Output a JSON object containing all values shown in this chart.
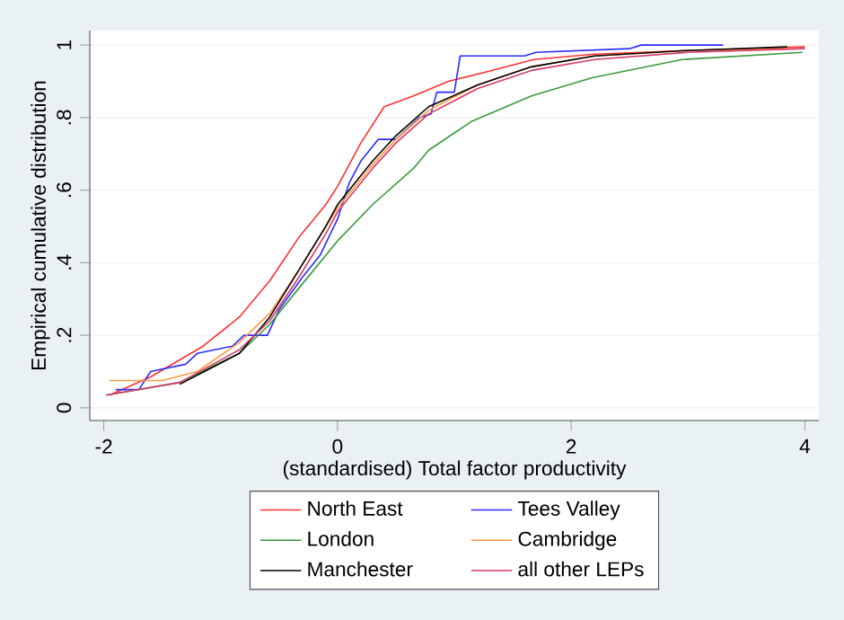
{
  "chart_data": {
    "type": "line",
    "xlabel": "(standardised) Total factor productivity",
    "ylabel": "Empirical cumulative distribution",
    "xlim": [
      -2.12,
      4.12
    ],
    "ylim": [
      -0.035,
      1.04
    ],
    "xticks": [
      -2,
      0,
      2,
      4
    ],
    "yticks": [
      0,
      {
        "value": 0.2,
        "label": ".2"
      },
      {
        "value": 0.4,
        "label": ".4"
      },
      {
        "value": 0.6,
        "label": ".6"
      },
      {
        "value": 0.8,
        "label": ".8"
      },
      1
    ],
    "grid": "y",
    "legend": "bottom",
    "marker": "none",
    "series": [
      {
        "name": "North East",
        "color": "#ff3030",
        "x": [
          -1.95,
          -1.6,
          -1.15,
          -0.84,
          -0.58,
          -0.33,
          -0.1,
          0,
          0.2,
          0.4,
          0.65,
          0.95,
          1.26,
          1.68,
          2.2,
          3.0,
          4.0
        ],
        "values": [
          0.035,
          0.085,
          0.17,
          0.25,
          0.35,
          0.47,
          0.56,
          0.61,
          0.73,
          0.83,
          0.86,
          0.9,
          0.925,
          0.96,
          0.975,
          0.985,
          0.995
        ]
      },
      {
        "name": "Tees Valley",
        "color": "#2b2bff",
        "x": [
          -1.9,
          -1.7,
          -1.6,
          -1.3,
          -1.2,
          -0.9,
          -0.8,
          -0.6,
          -0.5,
          -0.3,
          -0.15,
          0,
          0.1,
          0.2,
          0.35,
          0.5,
          0.7,
          0.8,
          0.85,
          1.0,
          1.05,
          1.6,
          1.7,
          2.5,
          2.6,
          3.3
        ],
        "values": [
          0.05,
          0.05,
          0.1,
          0.12,
          0.15,
          0.17,
          0.2,
          0.2,
          0.27,
          0.36,
          0.42,
          0.52,
          0.62,
          0.68,
          0.74,
          0.74,
          0.8,
          0.81,
          0.87,
          0.87,
          0.97,
          0.97,
          0.98,
          0.99,
          1.0,
          1.0
        ]
      },
      {
        "name": "London",
        "color": "#3a9a3a",
        "x": [
          -1.98,
          -1.35,
          -0.84,
          -0.58,
          -0.33,
          0,
          0.3,
          0.65,
          0.78,
          1.15,
          1.66,
          2.18,
          2.95,
          3.98
        ],
        "values": [
          0.035,
          0.07,
          0.15,
          0.23,
          0.33,
          0.46,
          0.56,
          0.66,
          0.71,
          0.79,
          0.86,
          0.91,
          0.96,
          0.98
        ]
      },
      {
        "name": "Cambridge",
        "color": "#ff9a40",
        "x": [
          -1.95,
          -1.5,
          -1.2,
          -0.84,
          -0.58,
          -0.33,
          -0.1,
          0,
          0.3,
          0.5,
          0.78,
          1.2,
          1.66,
          2.2,
          3.0,
          3.9
        ],
        "values": [
          0.075,
          0.075,
          0.1,
          0.18,
          0.26,
          0.38,
          0.5,
          0.55,
          0.67,
          0.74,
          0.82,
          0.89,
          0.94,
          0.97,
          0.985,
          0.99
        ]
      },
      {
        "name": "Manchester",
        "color": "#000000",
        "x": [
          -1.35,
          -0.84,
          -0.58,
          -0.33,
          -0.1,
          0,
          0.3,
          0.5,
          0.78,
          1.2,
          1.66,
          2.2,
          3.0,
          3.85
        ],
        "values": [
          0.065,
          0.15,
          0.25,
          0.38,
          0.5,
          0.56,
          0.68,
          0.75,
          0.83,
          0.89,
          0.94,
          0.97,
          0.985,
          0.995
        ]
      },
      {
        "name": "all other LEPs",
        "color": "#d63a6a",
        "x": [
          -1.98,
          -1.35,
          -0.84,
          -0.58,
          -0.33,
          -0.1,
          0,
          0.3,
          0.5,
          0.78,
          1.2,
          1.66,
          2.2,
          3.0,
          4.0
        ],
        "values": [
          0.035,
          0.07,
          0.16,
          0.24,
          0.36,
          0.48,
          0.54,
          0.66,
          0.73,
          0.81,
          0.88,
          0.93,
          0.96,
          0.98,
          0.99
        ]
      }
    ]
  }
}
